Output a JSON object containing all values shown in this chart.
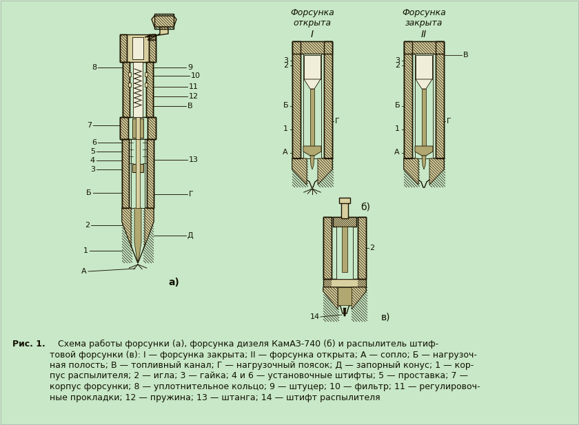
{
  "bg_color": "#c8e8c8",
  "fig_w": 8.4,
  "fig_h": 6.17,
  "dpi": 100,
  "outline": "#1a1200",
  "metal_hatch": "#8a8060",
  "metal_light": "#d8d0a0",
  "metal_mid": "#b0a870",
  "metal_white": "#f0eed8",
  "caption_bold": "Рис. 1.",
  "caption_line1": "   Схема работы форсунки (а), форсунка дизеля КамАЗ-740 (б) и распылитель штиф-",
  "caption_line2": "товой форсунки (в): I — форсунка закрыта; II — форсунка открыта; А — сопло; Б — нагрузоч-",
  "caption_line3": "ная полость; В — топливный канал; Г — нагрузочный поясок; Д — запорный конус; 1 — кор-",
  "caption_line4": "пус распылителя; 2 — игла; 3 — гайка; 4 и 6 — установочные штифты; 5 — проставка; 7 —",
  "caption_line5": "корпус форсунки; 8 — уплотнительное кольцо; 9 — штуцер; 10 — фильтр; 11 — регулировоч-",
  "caption_line6": "ные прокладки; 12 — пружина; 13 — штанга; 14 — штифт распылителя",
  "hdr_open": "Форсунка\nоткрыта",
  "hdr_closed": "Форсунка\nзакрыта",
  "lbl_a": "а)",
  "lbl_b": "б)",
  "lbl_v": "в)"
}
